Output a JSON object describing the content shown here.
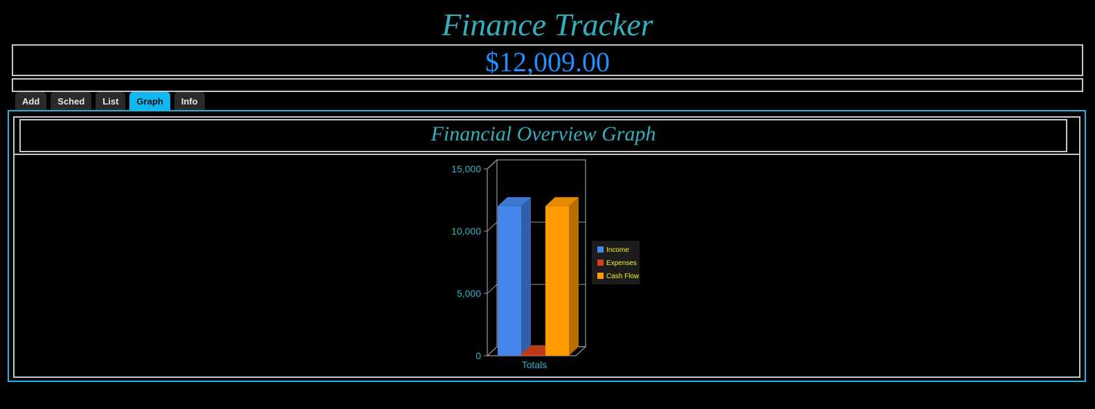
{
  "app": {
    "title": "Finance Tracker",
    "balance": "$12,009.00"
  },
  "tabs": [
    {
      "label": "Add",
      "active": false
    },
    {
      "label": "Sched",
      "active": false
    },
    {
      "label": "List",
      "active": false
    },
    {
      "label": "Graph",
      "active": true
    },
    {
      "label": "Info",
      "active": false
    }
  ],
  "graph_panel": {
    "title": "Financial Overview Graph"
  },
  "colors": {
    "accent": "#11b8ef",
    "title": "#33b0bd",
    "balance": "#1e90ff"
  },
  "chart_data": {
    "type": "bar",
    "categories": [
      "Totals"
    ],
    "series": [
      {
        "name": "Income",
        "values": [
          12009
        ],
        "color": "#4685ea"
      },
      {
        "name": "Expenses",
        "values": [
          0
        ],
        "color": "#d2401c"
      },
      {
        "name": "Cash Flow",
        "values": [
          12009
        ],
        "color": "#ff9a00"
      }
    ],
    "y_ticks": [
      "0",
      "5,000",
      "10,000",
      "15,000"
    ],
    "ylim": [
      0,
      15000
    ],
    "legend_position": "right",
    "grid": true,
    "style": "3d"
  }
}
